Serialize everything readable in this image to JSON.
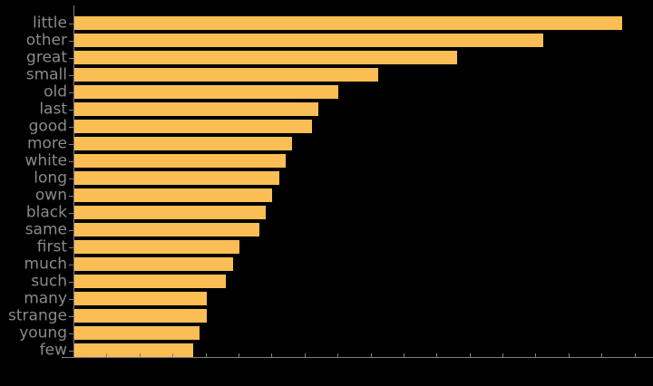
{
  "chart_data": {
    "type": "bar",
    "orientation": "horizontal",
    "title": "",
    "xlabel": "",
    "ylabel": "",
    "categories": [
      "little",
      "other",
      "great",
      "small",
      "old",
      "last",
      "good",
      "more",
      "white",
      "long",
      "own",
      "black",
      "same",
      "first",
      "much",
      "such",
      "many",
      "strange",
      "young",
      "few"
    ],
    "values": [
      415,
      355,
      290,
      230,
      200,
      185,
      180,
      165,
      160,
      155,
      150,
      145,
      140,
      125,
      120,
      115,
      100,
      100,
      95,
      90
    ],
    "xlim": [
      0,
      439
    ],
    "x_ticks": {
      "start": 0,
      "interval": 25,
      "count": 18,
      "labels_visible": false
    },
    "grid": false,
    "legend": false,
    "background_color": "#000000",
    "bar_color": "#fbbe55",
    "axis_color": "#808080",
    "tick_label_color": "#8a8a8a"
  }
}
